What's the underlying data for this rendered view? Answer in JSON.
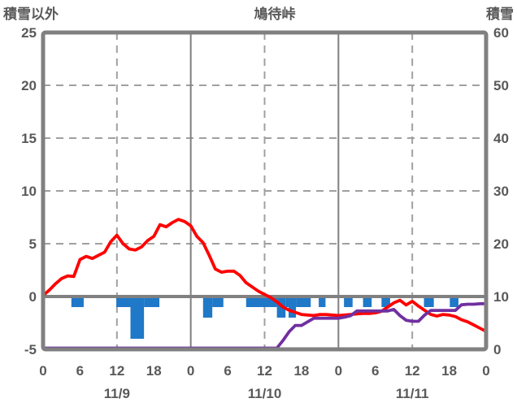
{
  "chart_data": {
    "type": "line+bar",
    "title": "鳩待峠",
    "grid": true,
    "legend": "none",
    "left_axis": {
      "label": "積雪以外",
      "min": -5,
      "max": 25,
      "ticks": [
        25,
        20,
        15,
        10,
        5,
        0,
        -5
      ]
    },
    "right_axis": {
      "label": "積雪",
      "min": 0,
      "max": 60,
      "ticks": [
        60,
        50,
        40,
        30,
        20,
        10,
        0
      ]
    },
    "x_axis": {
      "unit": "hours",
      "min_hour": 0,
      "max_hour": 72,
      "tick_interval_hours": 6,
      "tick_labels": [
        "0",
        "6",
        "12",
        "18",
        "0",
        "6",
        "12",
        "18",
        "0",
        "6",
        "12",
        "18",
        "0"
      ],
      "date_labels": [
        "11/9",
        "11/10",
        "11/11"
      ],
      "solid_gridline_hours": [
        24,
        48
      ],
      "dashed_gridline_hours": [
        12,
        36,
        60
      ]
    },
    "series": [
      {
        "name": "temperature-line",
        "type": "line",
        "axis": "left",
        "color": "#FF0000",
        "x_start_hour": 0,
        "x_step_hours": 1,
        "values": [
          0.1,
          0.6,
          1.2,
          1.7,
          1.95,
          1.9,
          3.5,
          3.8,
          3.6,
          3.9,
          4.2,
          5.2,
          5.8,
          5.0,
          4.5,
          4.4,
          4.7,
          5.3,
          5.7,
          6.8,
          6.6,
          7.0,
          7.3,
          7.1,
          6.7,
          5.7,
          5.1,
          3.9,
          2.6,
          2.3,
          2.4,
          2.4,
          2.0,
          1.3,
          0.9,
          0.5,
          0.2,
          -0.1,
          -0.5,
          -1.0,
          -1.3,
          -1.5,
          -1.7,
          -1.75,
          -1.8,
          -1.7,
          -1.7,
          -1.75,
          -1.8,
          -1.75,
          -1.7,
          -1.65,
          -1.6,
          -1.6,
          -1.55,
          -1.4,
          -1.0,
          -0.6,
          -0.35,
          -0.8,
          -0.45,
          -0.9,
          -1.3,
          -1.7,
          -1.85,
          -1.7,
          -1.75,
          -1.9,
          -2.2,
          -2.4,
          -2.7,
          -3.0,
          -3.3
        ]
      },
      {
        "name": "snow-depth-line",
        "type": "line",
        "axis": "right",
        "color": "#7030A0",
        "x_start_hour": 0,
        "x_step_hours": 1,
        "values": [
          0,
          0,
          0,
          0,
          0,
          0,
          0,
          0,
          0,
          0,
          0,
          0,
          0,
          0,
          0,
          0,
          0,
          0,
          0,
          0,
          0,
          0,
          0,
          0,
          0,
          0,
          0,
          0,
          0,
          0,
          0,
          0,
          0,
          0,
          0,
          0,
          0,
          0,
          0,
          1.5,
          3.2,
          4.4,
          4.4,
          5.1,
          5.8,
          5.8,
          5.8,
          5.8,
          5.8,
          6.0,
          6.3,
          7.2,
          7.2,
          7.2,
          7.2,
          7.2,
          7.2,
          7.5,
          6.3,
          5.4,
          5.2,
          5.2,
          6.4,
          7.3,
          7.3,
          7.3,
          7.3,
          7.3,
          8.4,
          8.5,
          8.5,
          8.6,
          8.6
        ]
      },
      {
        "name": "precipitation-bars",
        "type": "bar",
        "axis": "left",
        "color": "#1F78C8",
        "segments": [
          {
            "start_hour": 4.6,
            "end_hour": 6.6,
            "value": -1
          },
          {
            "start_hour": 11.9,
            "end_hour": 14.2,
            "value": -1
          },
          {
            "start_hour": 14.2,
            "end_hour": 16.4,
            "value": -4
          },
          {
            "start_hour": 16.4,
            "end_hour": 18.9,
            "value": -1
          },
          {
            "start_hour": 26.0,
            "end_hour": 27.5,
            "value": -2
          },
          {
            "start_hour": 27.5,
            "end_hour": 29.3,
            "value": -1
          },
          {
            "start_hour": 33.0,
            "end_hour": 38.0,
            "value": -1
          },
          {
            "start_hour": 38.0,
            "end_hour": 39.4,
            "value": -2
          },
          {
            "start_hour": 39.4,
            "end_hour": 39.9,
            "value": -1
          },
          {
            "start_hour": 39.9,
            "end_hour": 41.1,
            "value": -2
          },
          {
            "start_hour": 41.1,
            "end_hour": 43.5,
            "value": -1
          },
          {
            "start_hour": 44.8,
            "end_hour": 45.9,
            "value": -1
          },
          {
            "start_hour": 48.9,
            "end_hour": 50.3,
            "value": -1
          },
          {
            "start_hour": 52.0,
            "end_hour": 53.4,
            "value": -1
          },
          {
            "start_hour": 55.0,
            "end_hour": 56.4,
            "value": -1
          },
          {
            "start_hour": 61.9,
            "end_hour": 63.5,
            "value": -1
          },
          {
            "start_hour": 66.1,
            "end_hour": 67.5,
            "value": -1
          }
        ]
      }
    ],
    "colors": {
      "border": "#808080",
      "zero_line": "#808080",
      "dashed_grid": "#A0A0A0",
      "text": "#595959",
      "background": "#FFFFFF"
    }
  }
}
